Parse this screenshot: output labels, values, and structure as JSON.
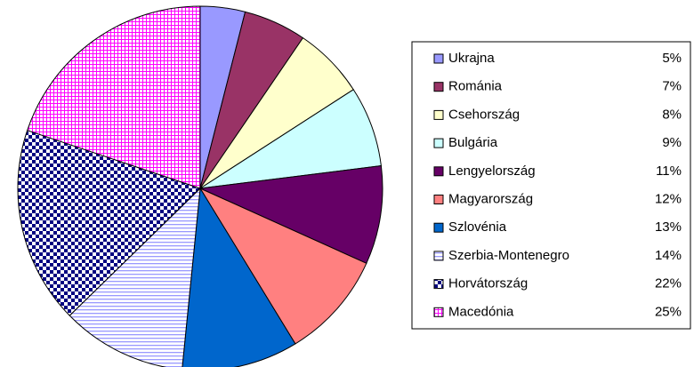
{
  "chart_data": {
    "type": "pie",
    "categories": [
      "Ukrajna",
      "Románia",
      "Csehország",
      "Bulgária",
      "Lengyelország",
      "Magyarország",
      "Szlovénia",
      "Szerbia-Montenegro",
      "Horvátország",
      "Macedónia"
    ],
    "values": [
      5,
      7,
      8,
      9,
      11,
      12,
      13,
      14,
      22,
      25
    ],
    "value_labels": [
      "5%",
      "7%",
      "8%",
      "9%",
      "11%",
      "12%",
      "13%",
      "14%",
      "22%",
      "25%"
    ],
    "colors": [
      "#9999ff",
      "#993366",
      "#ffffcc",
      "#ccffff",
      "#660066",
      "#ff8080",
      "#0066cc",
      "#9999ff",
      "#000080",
      "#ff00ff"
    ],
    "patterns": [
      null,
      null,
      null,
      null,
      null,
      null,
      null,
      "hlines",
      "checker",
      "grid"
    ],
    "legend": "right"
  }
}
